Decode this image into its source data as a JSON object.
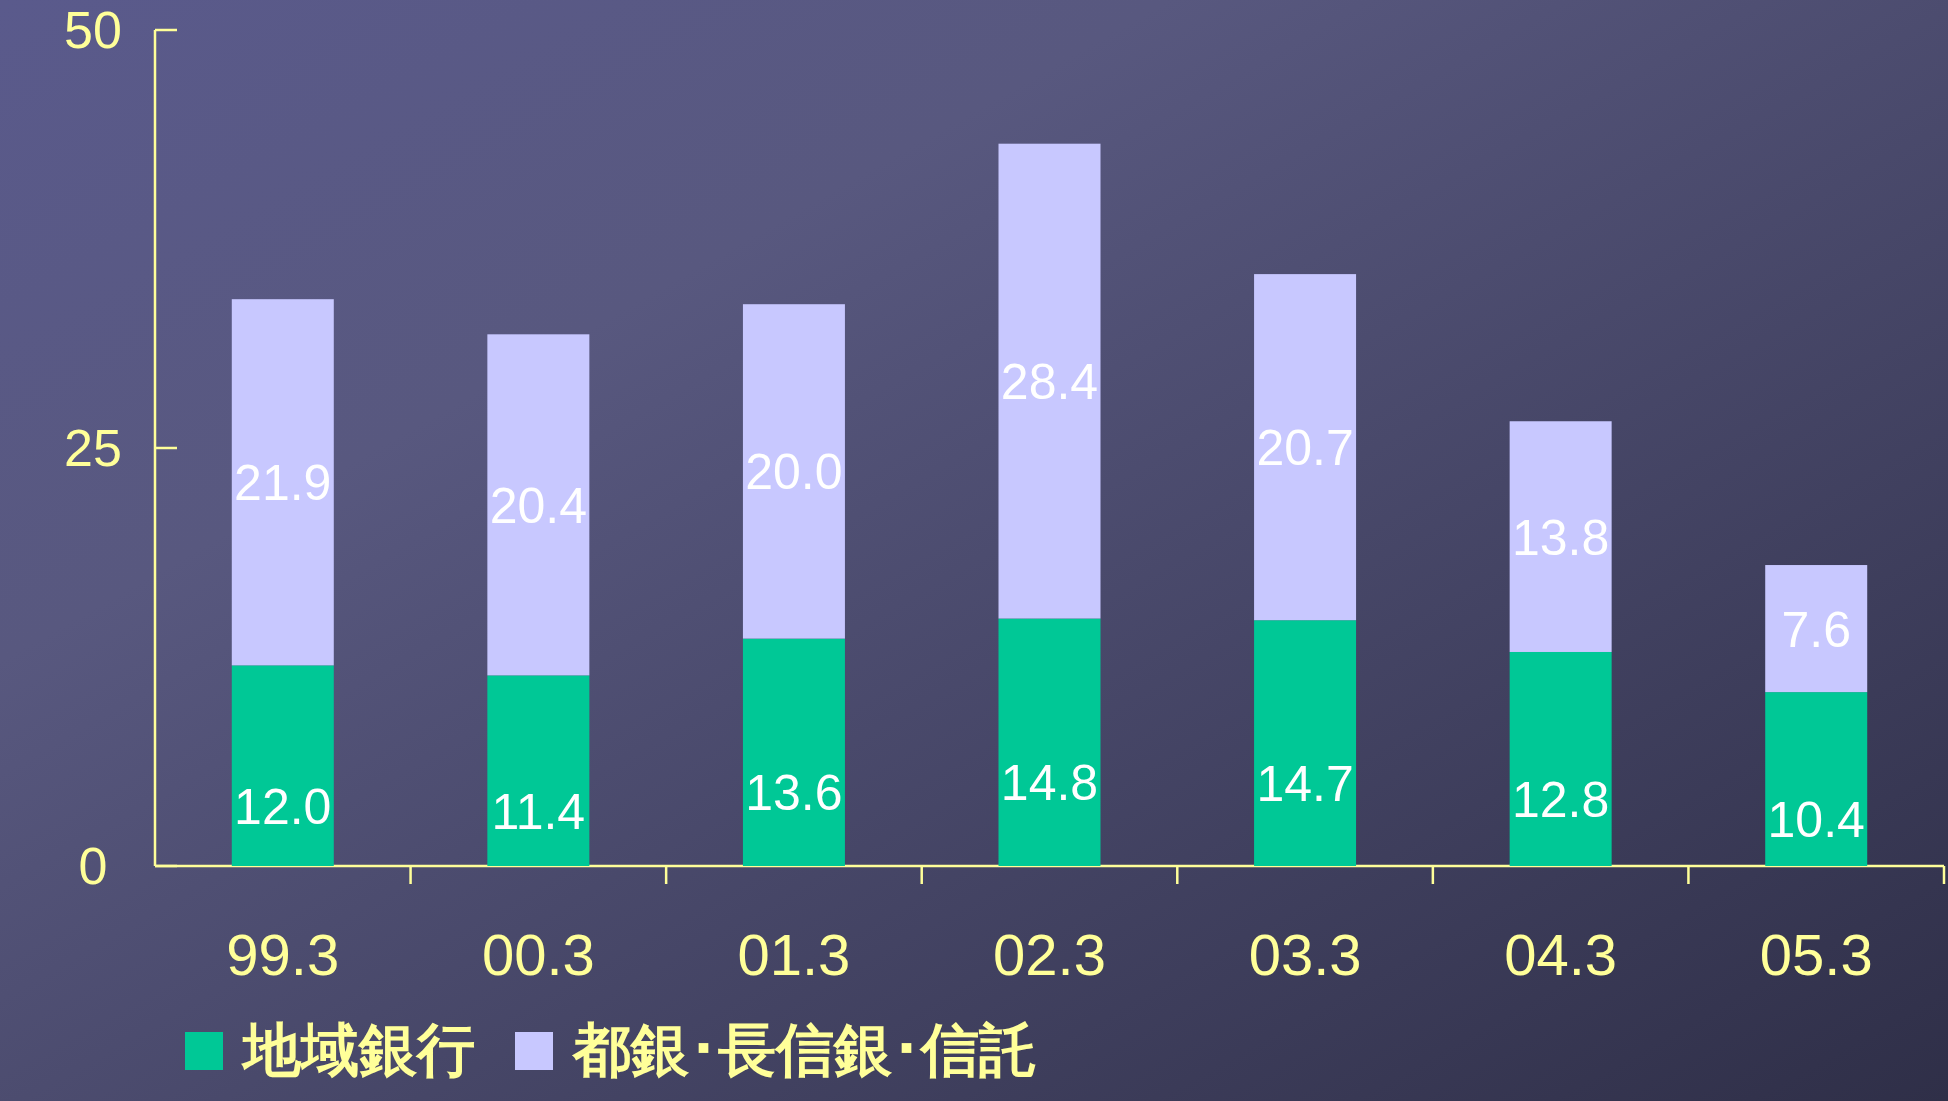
{
  "chart_data": {
    "type": "bar",
    "stacked": true,
    "categories": [
      "99.3",
      "00.3",
      "01.3",
      "02.3",
      "03.3",
      "04.3",
      "05.3"
    ],
    "series": [
      {
        "name": "地域銀行",
        "color": "#00c896",
        "values": [
          12.0,
          11.4,
          13.6,
          14.8,
          14.7,
          12.8,
          10.4
        ],
        "value_labels": [
          "12.0",
          "11.4",
          "13.6",
          "14.8",
          "14.7",
          "12.8",
          "10.4"
        ]
      },
      {
        "name": "都銀･長信銀･信託",
        "color": "#c8c8ff",
        "values": [
          21.9,
          20.4,
          20.0,
          28.4,
          20.7,
          13.8,
          7.6
        ],
        "value_labels": [
          "21.9",
          "20.4",
          "20.0",
          "28.4",
          "20.7",
          "13.8",
          "7.6"
        ]
      }
    ],
    "ylim": [
      0,
      50
    ],
    "yticks": [
      0,
      25,
      50
    ],
    "legend": "bottom left",
    "grid": false
  }
}
